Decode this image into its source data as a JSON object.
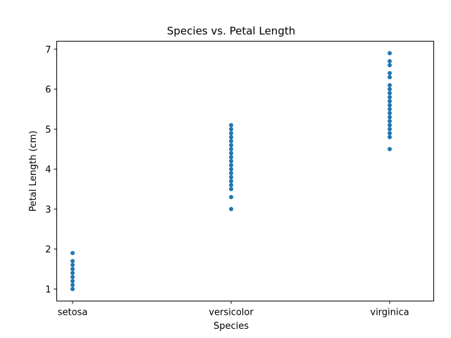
{
  "chart_data": {
    "type": "scatter",
    "title": "Species vs. Petal Length",
    "xlabel": "Species",
    "ylabel": "Petal Length (cm)",
    "categories": [
      "setosa",
      "versicolor",
      "virginica"
    ],
    "ylim": [
      0.7,
      7.2
    ],
    "yticks": [
      1,
      2,
      3,
      4,
      5,
      6,
      7
    ],
    "grid": false,
    "legend": "none",
    "color": "#1f77b4",
    "series": [
      {
        "values": [
          [
            "setosa",
            1.0
          ],
          [
            "setosa",
            1.1
          ],
          [
            "setosa",
            1.2
          ],
          [
            "setosa",
            1.3
          ],
          [
            "setosa",
            1.4
          ],
          [
            "setosa",
            1.5
          ],
          [
            "setosa",
            1.6
          ],
          [
            "setosa",
            1.7
          ],
          [
            "setosa",
            1.9
          ],
          [
            "versicolor",
            3.0
          ],
          [
            "versicolor",
            3.3
          ],
          [
            "versicolor",
            3.5
          ],
          [
            "versicolor",
            3.6
          ],
          [
            "versicolor",
            3.7
          ],
          [
            "versicolor",
            3.8
          ],
          [
            "versicolor",
            3.9
          ],
          [
            "versicolor",
            4.0
          ],
          [
            "versicolor",
            4.1
          ],
          [
            "versicolor",
            4.2
          ],
          [
            "versicolor",
            4.3
          ],
          [
            "versicolor",
            4.4
          ],
          [
            "versicolor",
            4.5
          ],
          [
            "versicolor",
            4.6
          ],
          [
            "versicolor",
            4.7
          ],
          [
            "versicolor",
            4.8
          ],
          [
            "versicolor",
            4.9
          ],
          [
            "versicolor",
            5.0
          ],
          [
            "versicolor",
            5.1
          ],
          [
            "virginica",
            4.5
          ],
          [
            "virginica",
            4.8
          ],
          [
            "virginica",
            4.9
          ],
          [
            "virginica",
            5.0
          ],
          [
            "virginica",
            5.1
          ],
          [
            "virginica",
            5.2
          ],
          [
            "virginica",
            5.3
          ],
          [
            "virginica",
            5.4
          ],
          [
            "virginica",
            5.5
          ],
          [
            "virginica",
            5.6
          ],
          [
            "virginica",
            5.7
          ],
          [
            "virginica",
            5.8
          ],
          [
            "virginica",
            5.9
          ],
          [
            "virginica",
            6.0
          ],
          [
            "virginica",
            6.1
          ],
          [
            "virginica",
            6.3
          ],
          [
            "virginica",
            6.4
          ],
          [
            "virginica",
            6.6
          ],
          [
            "virginica",
            6.7
          ],
          [
            "virginica",
            6.9
          ]
        ]
      }
    ]
  }
}
